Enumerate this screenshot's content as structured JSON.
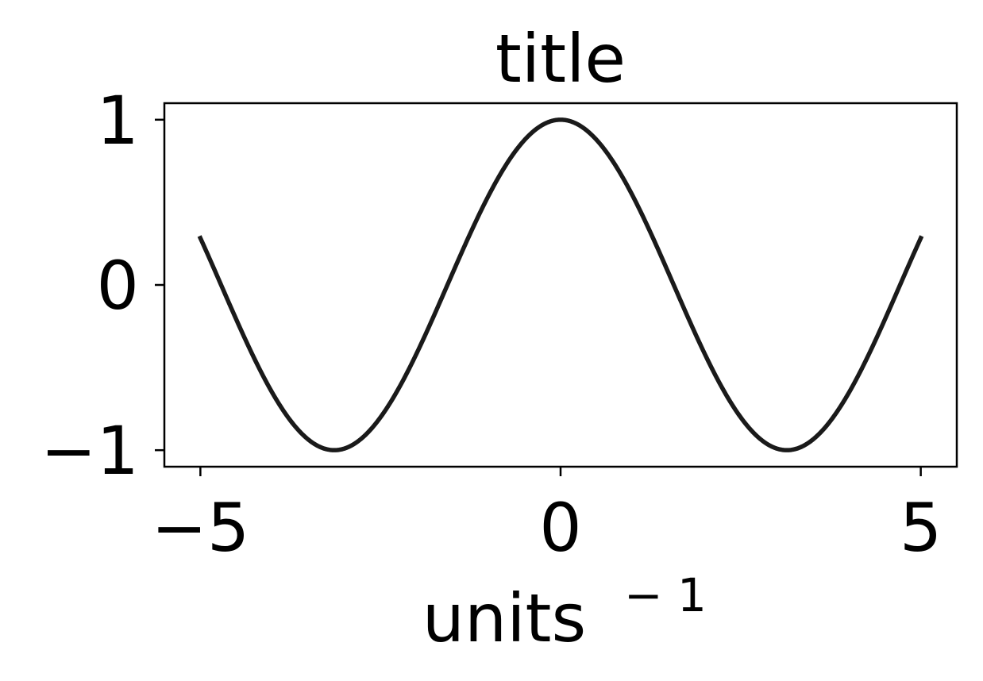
{
  "chart_data": {
    "type": "line",
    "title": "title",
    "xlabel": "units",
    "xlabel_superscript": "− 1",
    "ylabel": "",
    "xlim": [
      -5.5,
      5.5
    ],
    "ylim": [
      -1.1,
      1.1
    ],
    "xticks": [
      -5,
      0,
      5
    ],
    "xtick_labels": [
      "−5",
      "0",
      "5"
    ],
    "yticks": [
      -1,
      0,
      1
    ],
    "ytick_labels": [
      "−1",
      "0",
      "1"
    ],
    "grid": false,
    "series": [
      {
        "function": "cos(x)",
        "x_range": [
          -5,
          5
        ],
        "color": "#1a1a1a"
      }
    ]
  }
}
